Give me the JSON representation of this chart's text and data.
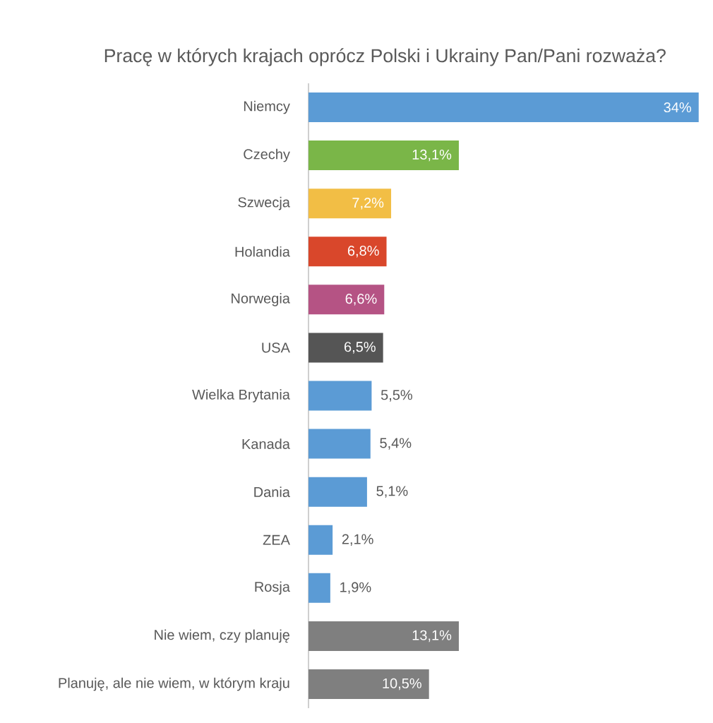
{
  "chart_data": {
    "type": "bar",
    "orientation": "horizontal",
    "title": "Pracę w których krajach oprócz Polski i Ukrainy Pan/Pani rozważa?",
    "categories": [
      "Niemcy",
      "Czechy",
      "Szwecja",
      "Holandia",
      "Norwegia",
      "USA",
      "Wielka Brytania",
      "Kanada",
      "Dania",
      "ZEA",
      "Rosja",
      "Nie wiem, czy planuję",
      "Planuję, ale nie wiem, w którym kraju"
    ],
    "values": [
      34,
      13.1,
      7.2,
      6.8,
      6.6,
      6.5,
      5.5,
      5.4,
      5.1,
      2.1,
      1.9,
      13.1,
      10.5
    ],
    "value_labels": [
      "34%",
      "13,1%",
      "7,2%",
      "6,8%",
      "6,6%",
      "6,5%",
      "5,5%",
      "5,4%",
      "5,1%",
      "2,1%",
      "1,9%",
      "13,1%",
      "10,5%"
    ],
    "colors": [
      "#5b9bd5",
      "#7ab648",
      "#f2be45",
      "#d9472b",
      "#b55384",
      "#555555",
      "#5b9bd5",
      "#5b9bd5",
      "#5b9bd5",
      "#5b9bd5",
      "#5b9bd5",
      "#7f7f7f",
      "#7f7f7f"
    ]
  }
}
